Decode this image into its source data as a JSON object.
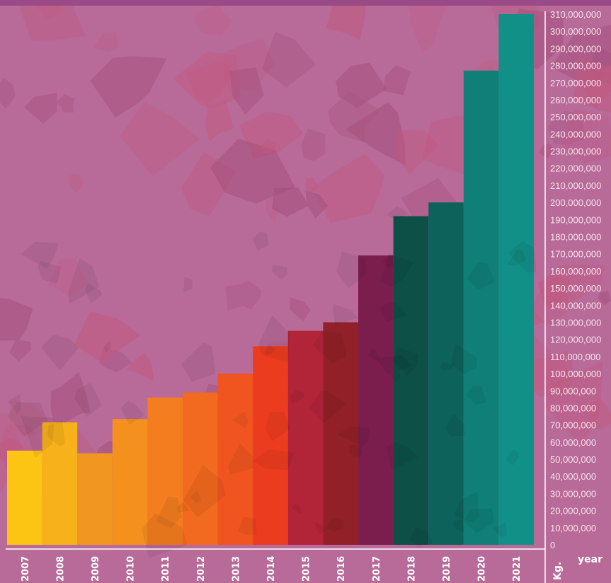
{
  "chart_data": {
    "type": "bar",
    "title": "",
    "xlabel": "year",
    "ylabel": "Kg.",
    "ylim": [
      0,
      310000000
    ],
    "grid": false,
    "categories": [
      "2007",
      "2008",
      "2009",
      "2010",
      "2011",
      "2012",
      "2013",
      "2014",
      "2015",
      "2016",
      "2017",
      "2018",
      "2019",
      "2020",
      "2021"
    ],
    "values": [
      55000000,
      71500000,
      53500000,
      73500000,
      86000000,
      89000000,
      100000000,
      116000000,
      125000000,
      130000000,
      169000000,
      192000000,
      200000000,
      277000000,
      310000000
    ],
    "bar_colors": [
      "#fcc413",
      "#f7b11b",
      "#f29622",
      "#f4901e",
      "#f47d1f",
      "#f26a1f",
      "#f0551f",
      "#ec3c1f",
      "#b22538",
      "#922028",
      "#7b1e4e",
      "#0c5048",
      "#0d625b",
      "#0f7f78",
      "#119088"
    ],
    "y_ticks": [
      "0",
      "10,000,000",
      "20,000,000",
      "30,000,000",
      "40,000,000",
      "50,000,000",
      "60,000,000",
      "70,000,000",
      "80,000,000",
      "90,000,000",
      "100,000,000",
      "110,000,000",
      "120,000,000",
      "130,000,000",
      "140,000,000",
      "150,000,000",
      "160,000,000",
      "170,000,000",
      "180,000,000",
      "190,000,000",
      "200,000,000",
      "210,000,000",
      "220,000,000",
      "230,000,000",
      "240,000,000",
      "250,000,000",
      "260,000,000",
      "270,000,000",
      "280,000,000",
      "290,000,000",
      "300,000,000",
      "310,000,000"
    ],
    "y_tick_values": [
      0,
      10000000,
      20000000,
      30000000,
      40000000,
      50000000,
      60000000,
      70000000,
      80000000,
      90000000,
      100000000,
      110000000,
      120000000,
      130000000,
      140000000,
      150000000,
      160000000,
      170000000,
      180000000,
      190000000,
      200000000,
      210000000,
      220000000,
      230000000,
      240000000,
      250000000,
      260000000,
      270000000,
      280000000,
      290000000,
      300000000,
      310000000
    ]
  },
  "colors": {
    "background": "#b86a98",
    "top_band": "#9a4a86",
    "axis_line": "#ffffff",
    "tick_text": "#f6e3ee"
  }
}
